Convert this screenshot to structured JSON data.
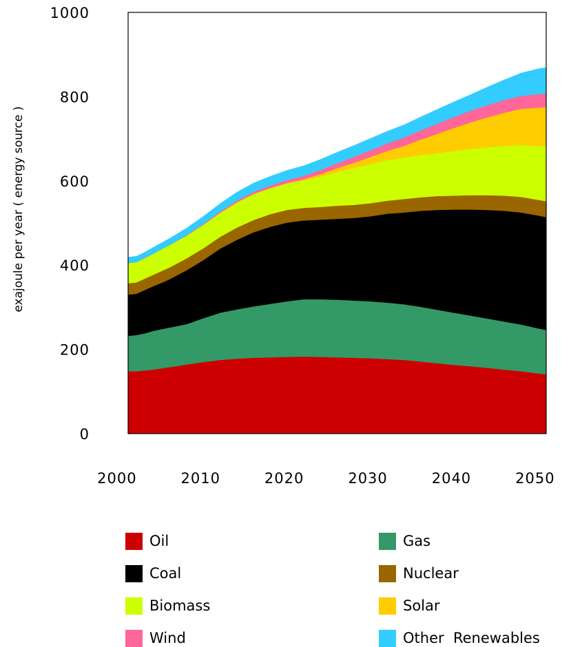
{
  "chart_data": {
    "type": "area",
    "stacked": true,
    "title": "",
    "xlabel": "",
    "ylabel": "exajoule per   year  ( energy  source )",
    "xlim": [
      2001,
      2051
    ],
    "ylim": [
      0,
      1000
    ],
    "xticks": [
      "2000",
      "2010",
      "2020",
      "2030",
      "2040",
      "2050"
    ],
    "yticks": [
      "0",
      "200",
      "400",
      "600",
      "800",
      "1000"
    ],
    "grid": false,
    "legend_position": "bottom",
    "x": [
      2001,
      2002,
      2003,
      2004,
      2005,
      2006,
      2008,
      2010,
      2012,
      2014,
      2016,
      2018,
      2020,
      2022,
      2024,
      2026,
      2028,
      2030,
      2032,
      2034,
      2036,
      2038,
      2040,
      2042,
      2044,
      2046,
      2048,
      2050,
      2051
    ],
    "series": [
      {
        "name": "Oil",
        "color": "#cc0000",
        "values": [
          148,
          148,
          150,
          152,
          155,
          158,
          164,
          170,
          175,
          178,
          180,
          181,
          182,
          183,
          182,
          181,
          180,
          179,
          177,
          175,
          171,
          167,
          163,
          160,
          156,
          152,
          148,
          143,
          141
        ]
      },
      {
        "name": "Gas",
        "color": "#339966",
        "values": [
          84,
          86,
          88,
          92,
          93,
          94,
          96,
          104,
          112,
          117,
          122,
          127,
          132,
          136,
          137,
          137,
          136,
          135,
          134,
          132,
          130,
          127,
          124,
          120,
          117,
          114,
          111,
          107,
          105
        ]
      },
      {
        "name": "Coal",
        "color": "#000000",
        "values": [
          98,
          98,
          103,
          106,
          110,
          115,
          128,
          138,
          152,
          165,
          176,
          183,
          187,
          187,
          189,
          192,
          196,
          202,
          211,
          218,
          228,
          237,
          245,
          252,
          258,
          263,
          266,
          268,
          268
        ]
      },
      {
        "name": "Nuclear",
        "color": "#996600",
        "values": [
          27,
          27,
          27,
          27,
          28,
          28,
          28,
          28,
          28,
          29,
          29,
          30,
          30,
          30,
          30,
          31,
          31,
          31,
          31,
          32,
          32,
          33,
          33,
          34,
          35,
          36,
          37,
          37,
          38
        ]
      },
      {
        "name": "Biomass",
        "color": "#ccff00",
        "values": [
          48,
          48,
          49,
          50,
          52,
          53,
          54,
          56,
          57,
          60,
          62,
          62,
          63,
          65,
          72,
          80,
          87,
          93,
          96,
          98,
          100,
          102,
          106,
          110,
          114,
          118,
          123,
          128,
          130
        ]
      },
      {
        "name": "Solar",
        "color": "#ffcc00",
        "values": [
          0,
          0,
          0,
          0,
          0,
          0,
          0,
          0,
          0,
          0,
          0,
          0,
          1,
          3,
          6,
          9,
          13,
          17,
          22,
          28,
          37,
          46,
          55,
          63,
          71,
          79,
          86,
          91,
          93
        ]
      },
      {
        "name": "Wind",
        "color": "#ff6699",
        "values": [
          0,
          0,
          0,
          0,
          0,
          0,
          1,
          2,
          3,
          4,
          5,
          6,
          7,
          8,
          10,
          12,
          14,
          16,
          18,
          20,
          22,
          24,
          26,
          28,
          29,
          30,
          31,
          32,
          32
        ]
      },
      {
        "name": "Other  Renewables",
        "color": "#33ccff",
        "values": [
          14,
          14,
          14,
          15,
          15,
          16,
          17,
          18,
          19,
          20,
          21,
          22,
          23,
          24,
          25,
          26,
          27,
          28,
          29,
          30,
          32,
          34,
          36,
          38,
          43,
          48,
          54,
          60,
          62
        ]
      }
    ]
  }
}
